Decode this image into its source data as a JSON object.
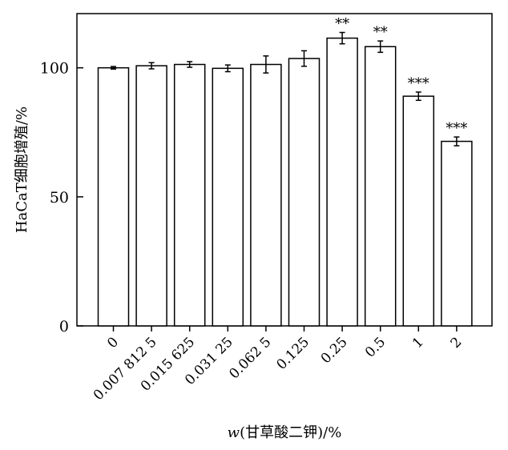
{
  "chart_data": {
    "type": "bar",
    "categories": [
      "0",
      "0.007 812 5",
      "0.015 625",
      "0.031 25",
      "0.062 5",
      "0.125",
      "0.25",
      "0.5",
      "1",
      "2"
    ],
    "values": [
      100,
      100.8,
      101.3,
      99.8,
      101.3,
      103.6,
      111.5,
      108.2,
      89.0,
      71.5
    ],
    "errors": [
      0.5,
      1.2,
      1.1,
      1.3,
      3.3,
      3.0,
      2.2,
      2.2,
      1.6,
      1.7
    ],
    "significance": [
      "",
      "",
      "",
      "",
      "",
      "",
      "**",
      "**",
      "***",
      "***"
    ],
    "xlabel": "w(甘草酸二钾)/%",
    "xlabel_var": "w",
    "xlabel_rest": "(甘草酸二钾)/%",
    "ylabel": "HaCaT细胞增殖/%",
    "ylim": [
      0,
      121
    ],
    "yticks": [
      0,
      50,
      100
    ],
    "grid": false,
    "colors": {
      "bar_fill": "#ffffff",
      "bar_stroke": "#000000",
      "axis": "#000000"
    }
  }
}
